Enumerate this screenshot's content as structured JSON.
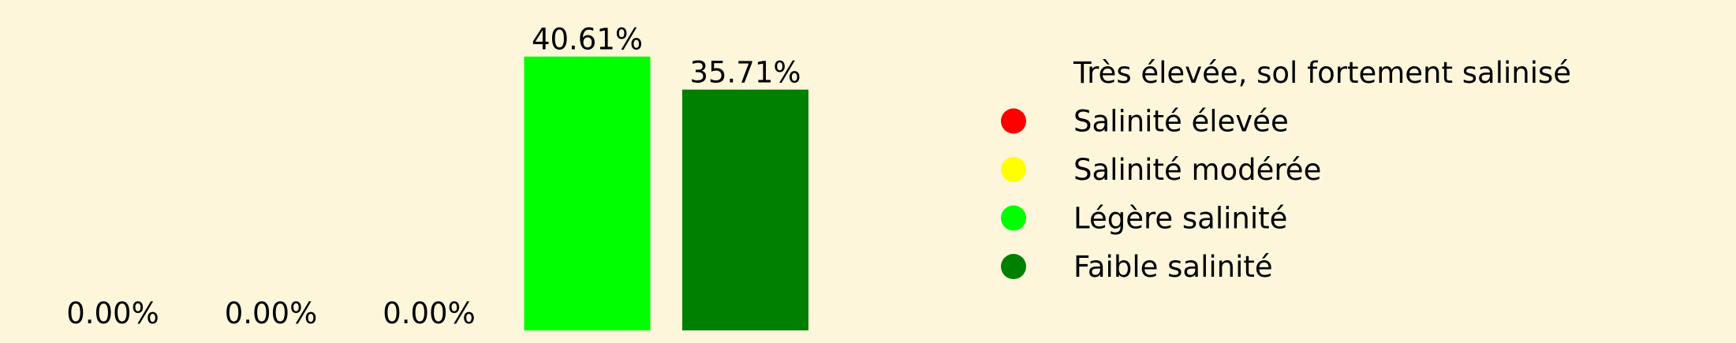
{
  "chart_data": {
    "type": "bar",
    "categories": [
      "Très élevée, sol fortement salinisé",
      "Salinité élevée",
      "Salinité modérée",
      "Légère salinité",
      "Faible salinité"
    ],
    "values": [
      0.0,
      0.0,
      0.0,
      40.61,
      35.71
    ],
    "value_labels": [
      "0.00%",
      "0.00%",
      "0.00%",
      "40.61%",
      "35.71%"
    ],
    "colors": [
      "#8b0000",
      "#ff0000",
      "#ffff00",
      "#00ff00",
      "#008000"
    ],
    "ylim": [
      0,
      49
    ],
    "grid": false,
    "legend": {
      "placement": "right",
      "entries": [
        {
          "label": "Très élevée, sol fortement salinisé",
          "color": "#8b0000",
          "marker_visible": false
        },
        {
          "label": "Salinité élevée",
          "color": "#ff0000",
          "marker_visible": true
        },
        {
          "label": "Salinité modérée",
          "color": "#ffff00",
          "marker_visible": true
        },
        {
          "label": "Légère salinité",
          "color": "#00ff00",
          "marker_visible": true
        },
        {
          "label": "Faible salinité",
          "color": "#008000",
          "marker_visible": true
        }
      ]
    }
  }
}
